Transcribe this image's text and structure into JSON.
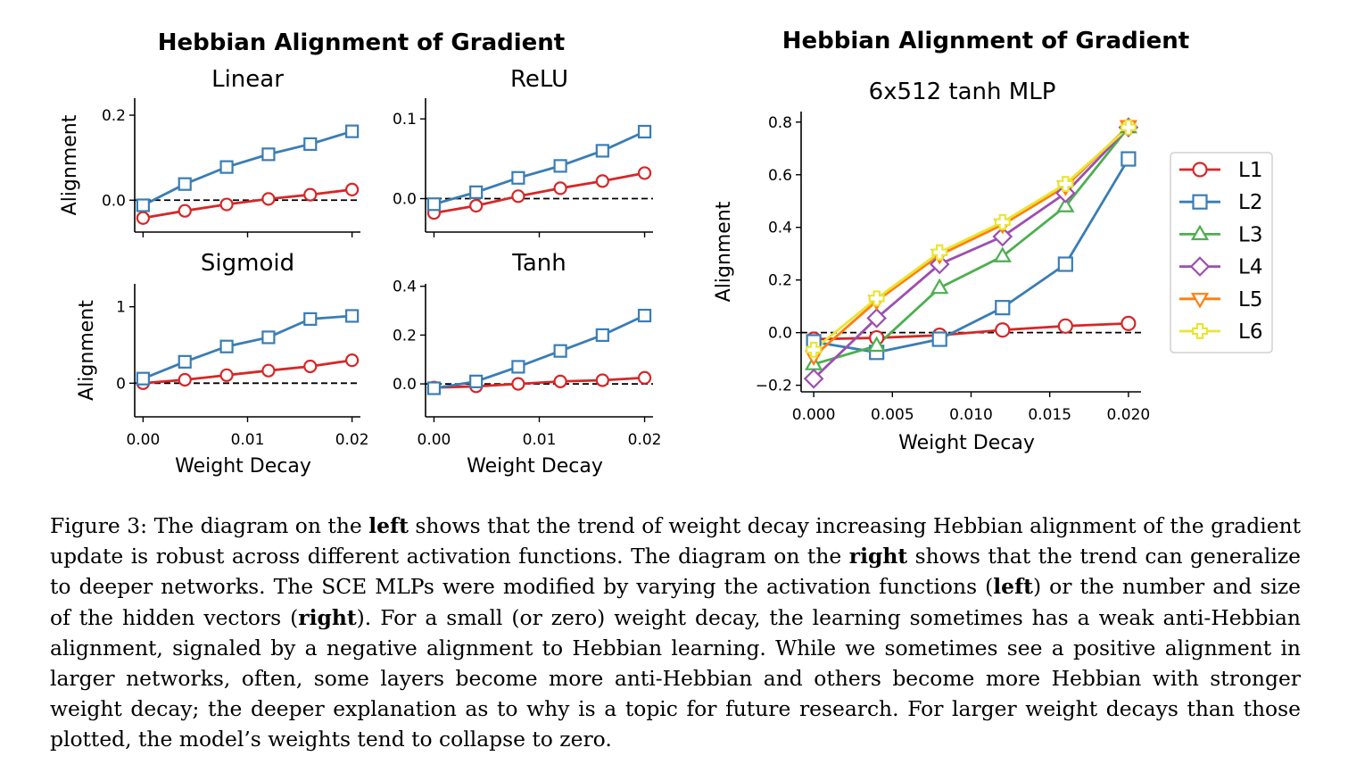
{
  "figure": {
    "left_title": "Hebbian Alignment of Gradient",
    "right_title": "Hebbian Alignment of Gradient"
  },
  "chart_data": [
    {
      "type": "line",
      "title": "Linear",
      "xlabel": "",
      "ylabel": "Alignment",
      "x": [
        0.0,
        0.004,
        0.008,
        0.012,
        0.016,
        0.02
      ],
      "xlim": [
        -0.0008,
        0.0208
      ],
      "ylim": [
        -0.075,
        0.24
      ],
      "yticks": [
        0.0,
        0.2
      ],
      "ytick_labels": [
        "0.0",
        "0.2"
      ],
      "xticks": [
        0.0,
        0.01,
        0.02
      ],
      "xtick_labels": [],
      "zero_line": true,
      "series": [
        {
          "name": "L1",
          "color": "#d62728",
          "marker": "circle",
          "values": [
            -0.042,
            -0.025,
            -0.01,
            0.003,
            0.013,
            0.025
          ]
        },
        {
          "name": "L2",
          "color": "#3a7db5",
          "marker": "square",
          "values": [
            -0.012,
            0.038,
            0.078,
            0.108,
            0.132,
            0.162
          ]
        }
      ]
    },
    {
      "type": "line",
      "title": "ReLU",
      "xlabel": "",
      "ylabel": "",
      "x": [
        0.0,
        0.004,
        0.008,
        0.012,
        0.016,
        0.02
      ],
      "xlim": [
        -0.0008,
        0.0208
      ],
      "ylim": [
        -0.042,
        0.126
      ],
      "yticks": [
        0.0,
        0.1
      ],
      "ytick_labels": [
        "0.0",
        "0.1"
      ],
      "xticks": [
        0.0,
        0.01,
        0.02
      ],
      "xtick_labels": [],
      "zero_line": true,
      "series": [
        {
          "name": "L1",
          "color": "#d62728",
          "marker": "circle",
          "values": [
            -0.018,
            -0.009,
            0.003,
            0.013,
            0.022,
            0.032
          ]
        },
        {
          "name": "L2",
          "color": "#3a7db5",
          "marker": "square",
          "values": [
            -0.007,
            0.008,
            0.026,
            0.041,
            0.06,
            0.084
          ]
        }
      ]
    },
    {
      "type": "line",
      "title": "Sigmoid",
      "xlabel": "Weight Decay",
      "ylabel": "Alignment",
      "x": [
        0.0,
        0.004,
        0.008,
        0.012,
        0.016,
        0.02
      ],
      "xlim": [
        -0.0008,
        0.0208
      ],
      "ylim": [
        -0.44,
        1.3
      ],
      "yticks": [
        0,
        1
      ],
      "ytick_labels": [
        "0",
        "1"
      ],
      "xticks": [
        0.0,
        0.01,
        0.02
      ],
      "xtick_labels": [
        "0.00",
        "0.01",
        "0.02"
      ],
      "zero_line": true,
      "series": [
        {
          "name": "L1",
          "color": "#d62728",
          "marker": "circle",
          "values": [
            0.0,
            0.045,
            0.105,
            0.165,
            0.22,
            0.3
          ]
        },
        {
          "name": "L2",
          "color": "#3a7db5",
          "marker": "square",
          "values": [
            0.06,
            0.28,
            0.48,
            0.6,
            0.84,
            0.88
          ]
        }
      ]
    },
    {
      "type": "line",
      "title": "Tanh",
      "xlabel": "Weight Decay",
      "ylabel": "",
      "x": [
        0.0,
        0.004,
        0.008,
        0.012,
        0.016,
        0.02
      ],
      "xlim": [
        -0.0008,
        0.0208
      ],
      "ylim": [
        -0.135,
        0.41
      ],
      "yticks": [
        0.0,
        0.2,
        0.4
      ],
      "ytick_labels": [
        "0.0",
        "0.2",
        "0.4"
      ],
      "xticks": [
        0.0,
        0.01,
        0.02
      ],
      "xtick_labels": [
        "0.00",
        "0.01",
        "0.02"
      ],
      "zero_line": true,
      "series": [
        {
          "name": "L1",
          "color": "#d62728",
          "marker": "circle",
          "values": [
            -0.015,
            -0.01,
            0.0,
            0.01,
            0.015,
            0.025
          ]
        },
        {
          "name": "L2",
          "color": "#3a7db5",
          "marker": "square",
          "values": [
            -0.018,
            0.01,
            0.07,
            0.135,
            0.2,
            0.28
          ]
        }
      ]
    },
    {
      "type": "line",
      "title": "6x512 tanh MLP",
      "xlabel": "Weight Decay",
      "ylabel": "Alignment",
      "x": [
        0.0,
        0.004,
        0.008,
        0.012,
        0.016,
        0.02
      ],
      "xlim": [
        -0.0008,
        0.0208
      ],
      "ylim": [
        -0.225,
        0.84
      ],
      "yticks": [
        -0.2,
        0.0,
        0.2,
        0.4,
        0.6,
        0.8
      ],
      "ytick_labels": [
        "−0.2",
        "0.0",
        "0.2",
        "0.4",
        "0.6",
        "0.8"
      ],
      "xticks": [
        0.0,
        0.005,
        0.01,
        0.015,
        0.02
      ],
      "xtick_labels": [
        "0.000",
        "0.005",
        "0.010",
        "0.015",
        "0.020"
      ],
      "zero_line": true,
      "legend": "right",
      "series": [
        {
          "name": "L1",
          "color": "#d62728",
          "marker": "circle",
          "values": [
            -0.025,
            -0.02,
            -0.01,
            0.01,
            0.025,
            0.035
          ]
        },
        {
          "name": "L2",
          "color": "#3a7db5",
          "marker": "square",
          "values": [
            -0.035,
            -0.075,
            -0.025,
            0.095,
            0.26,
            0.66
          ]
        },
        {
          "name": "L3",
          "color": "#4caf50",
          "marker": "triangle-up",
          "values": [
            -0.12,
            -0.05,
            0.17,
            0.29,
            0.48,
            0.78
          ]
        },
        {
          "name": "L4",
          "color": "#9c4fb0",
          "marker": "diamond",
          "values": [
            -0.175,
            0.055,
            0.26,
            0.365,
            0.53,
            0.78
          ]
        },
        {
          "name": "L5",
          "color": "#ff7f0e",
          "marker": "triangle-down",
          "values": [
            -0.09,
            0.12,
            0.295,
            0.41,
            0.555,
            0.785
          ]
        },
        {
          "name": "L6",
          "color": "#e8e534",
          "marker": "plus",
          "values": [
            -0.065,
            0.13,
            0.305,
            0.42,
            0.565,
            0.78
          ]
        }
      ]
    }
  ],
  "caption": {
    "label": "Figure 3:",
    "seg1": "The diagram on the",
    "bold1": "left",
    "seg2": "shows that the trend of weight decay increasing Hebbian alignment of the gradient update is robust across different activation functions. The diagram on the",
    "bold2": "right",
    "seg3": "shows that the trend can generalize to deeper networks. The SCE MLPs were modified by varying the activation functions (",
    "bold3": "left",
    "seg4": ") or the number and size of the hidden vectors (",
    "bold4": "right",
    "seg5": "). For a small (or zero) weight decay, the learning sometimes has a weak anti-Hebbian alignment, signaled by a negative alignment to Hebbian learning. While we sometimes see a positive alignment in larger networks, often, some layers become more anti-Hebbian and others become more Hebbian with stronger weight decay; the deeper explanation as to why is a topic for future research. For larger weight decays than those plotted, the model’s weights tend to collapse to zero."
  }
}
